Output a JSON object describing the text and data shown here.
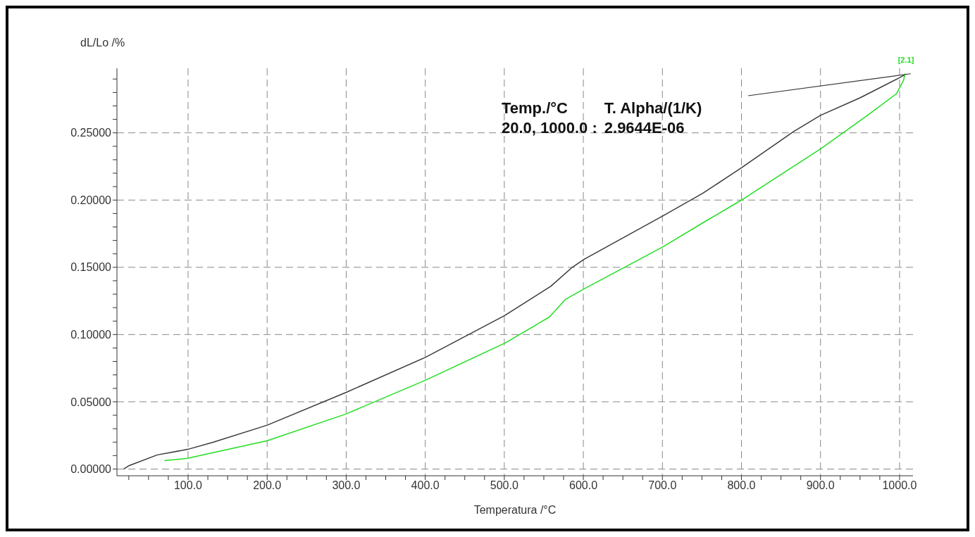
{
  "chart_data": {
    "type": "line",
    "xlabel": "Temperatura /°C",
    "ylabel": "dL/Lo /%",
    "xlim": [
      10,
      1017
    ],
    "ylim": [
      -0.005,
      0.298
    ],
    "xticks": [
      {
        "value": 25,
        "label": null
      },
      {
        "value": 50,
        "label": null
      },
      {
        "value": 75,
        "label": null
      },
      {
        "value": 100,
        "label": "100.0"
      },
      {
        "value": 125,
        "label": null
      },
      {
        "value": 150,
        "label": null
      },
      {
        "value": 175,
        "label": null
      },
      {
        "value": 200,
        "label": "200.0"
      },
      {
        "value": 225,
        "label": null
      },
      {
        "value": 250,
        "label": null
      },
      {
        "value": 275,
        "label": null
      },
      {
        "value": 300,
        "label": "300.0"
      },
      {
        "value": 325,
        "label": null
      },
      {
        "value": 350,
        "label": null
      },
      {
        "value": 375,
        "label": null
      },
      {
        "value": 400,
        "label": "400.0"
      },
      {
        "value": 425,
        "label": null
      },
      {
        "value": 450,
        "label": null
      },
      {
        "value": 475,
        "label": null
      },
      {
        "value": 500,
        "label": "500.0"
      },
      {
        "value": 525,
        "label": null
      },
      {
        "value": 550,
        "label": null
      },
      {
        "value": 575,
        "label": null
      },
      {
        "value": 600,
        "label": "600.0"
      },
      {
        "value": 625,
        "label": null
      },
      {
        "value": 650,
        "label": null
      },
      {
        "value": 675,
        "label": null
      },
      {
        "value": 700,
        "label": "700.0"
      },
      {
        "value": 725,
        "label": null
      },
      {
        "value": 750,
        "label": null
      },
      {
        "value": 775,
        "label": null
      },
      {
        "value": 800,
        "label": "800.0"
      },
      {
        "value": 825,
        "label": null
      },
      {
        "value": 850,
        "label": null
      },
      {
        "value": 875,
        "label": null
      },
      {
        "value": 900,
        "label": "900.0"
      },
      {
        "value": 925,
        "label": null
      },
      {
        "value": 950,
        "label": null
      },
      {
        "value": 975,
        "label": null
      },
      {
        "value": 1000,
        "label": "1000.0"
      }
    ],
    "yticks": [
      {
        "value": 0,
        "label": "0.00000"
      },
      {
        "value": 0.01,
        "label": null
      },
      {
        "value": 0.02,
        "label": null
      },
      {
        "value": 0.03,
        "label": null
      },
      {
        "value": 0.04,
        "label": null
      },
      {
        "value": 0.05,
        "label": "0.05000"
      },
      {
        "value": 0.06,
        "label": null
      },
      {
        "value": 0.07,
        "label": null
      },
      {
        "value": 0.08,
        "label": null
      },
      {
        "value": 0.09,
        "label": null
      },
      {
        "value": 0.1,
        "label": "0.10000"
      },
      {
        "value": 0.11,
        "label": null
      },
      {
        "value": 0.12,
        "label": null
      },
      {
        "value": 0.13,
        "label": null
      },
      {
        "value": 0.14,
        "label": null
      },
      {
        "value": 0.15,
        "label": "0.15000"
      },
      {
        "value": 0.16,
        "label": null
      },
      {
        "value": 0.17,
        "label": null
      },
      {
        "value": 0.18,
        "label": null
      },
      {
        "value": 0.19,
        "label": null
      },
      {
        "value": 0.2,
        "label": "0.20000"
      },
      {
        "value": 0.21,
        "label": null
      },
      {
        "value": 0.22,
        "label": null
      },
      {
        "value": 0.23,
        "label": null
      },
      {
        "value": 0.24,
        "label": null
      },
      {
        "value": 0.25,
        "label": "0.25000"
      },
      {
        "value": 0.26,
        "label": null
      },
      {
        "value": 0.27,
        "label": null
      },
      {
        "value": 0.28,
        "label": null
      },
      {
        "value": 0.29,
        "label": null
      }
    ],
    "grid": true,
    "marker": "none",
    "line_style": "solid",
    "series": [
      {
        "color": "#3a3a3a",
        "x": [
          18.6,
          25.6,
          61,
          100,
          132,
          200,
          300,
          400,
          500,
          559,
          586,
          601,
          700,
          751,
          800,
          866,
          900,
          950,
          1000,
          1006
        ],
        "values": [
          0,
          0.0026,
          0.0105,
          0.0147,
          0.02,
          0.0326,
          0.057,
          0.083,
          0.114,
          0.136,
          0.15,
          0.156,
          0.188,
          0.205,
          0.224,
          0.251,
          0.263,
          0.276,
          0.291,
          0.293
        ]
      },
      {
        "color": "#22dd22",
        "x": [
          70,
          99,
          200,
          300,
          400,
          501,
          557,
          577,
          601,
          700,
          751,
          800,
          900,
          957,
          996,
          1005,
          1007
        ],
        "values": [
          0.0063,
          0.0079,
          0.021,
          0.041,
          0.066,
          0.0937,
          0.113,
          0.126,
          0.134,
          0.165,
          0.183,
          0.2,
          0.238,
          0.262,
          0.279,
          0.289,
          0.294
        ]
      }
    ],
    "annotations": [
      "Temp./°C",
      "T. Alpha/(1/K)",
      "20.0, 1000.0 :",
      "2.9644E-06",
      {
        "text": "[2.1]",
        "x": 1007,
        "y": 0.294
      }
    ]
  }
}
